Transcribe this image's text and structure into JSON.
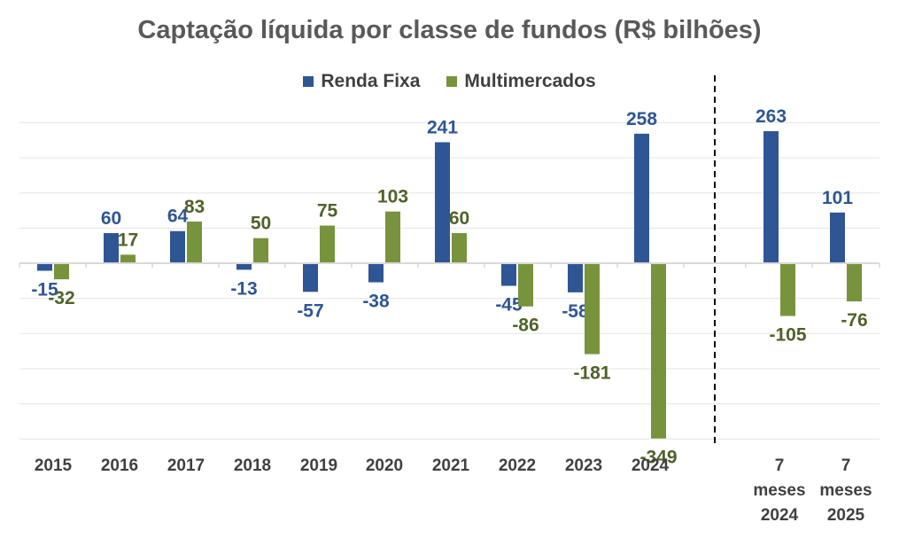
{
  "chart_data": {
    "type": "bar",
    "title": "Captação líquida por classe de fundos (R$ bilhões)",
    "xlabel": "",
    "ylabel": "",
    "ylim": [
      -400,
      300
    ],
    "grid": true,
    "legend_position": "top-center",
    "categories": [
      [
        "2015"
      ],
      [
        "2016"
      ],
      [
        "2017"
      ],
      [
        "2018"
      ],
      [
        "2019"
      ],
      [
        "2020"
      ],
      [
        "2021"
      ],
      [
        "2022"
      ],
      [
        "2023"
      ],
      [
        "2024"
      ],
      [
        "7",
        "meses",
        "2024"
      ],
      [
        "7",
        "meses",
        "2025"
      ]
    ],
    "separator_after_category_index": 9,
    "series": [
      {
        "name": "Renda Fixa",
        "color": "#2E5694",
        "values": [
          -15,
          60,
          64,
          -13,
          -57,
          -38,
          241,
          -45,
          -58,
          258,
          263,
          101
        ]
      },
      {
        "name": "Multimercados",
        "color": "#77933C",
        "values": [
          -32,
          17,
          83,
          50,
          75,
          103,
          60,
          -86,
          -181,
          -349,
          -105,
          -76
        ]
      }
    ]
  }
}
